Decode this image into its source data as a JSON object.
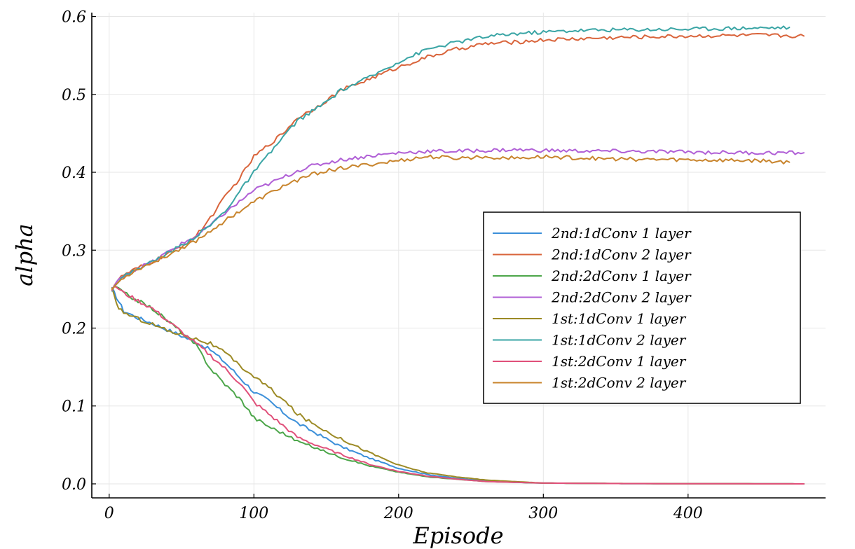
{
  "chart_data": {
    "type": "line",
    "title": "",
    "xlabel": "Episode",
    "ylabel": "alpha",
    "xlim": [
      -12,
      495
    ],
    "ylim": [
      -0.018,
      0.605
    ],
    "x_ticks": [
      0,
      100,
      200,
      300,
      400
    ],
    "x_tick_labels": [
      "0",
      "100",
      "200",
      "300",
      "400"
    ],
    "y_ticks": [
      0.0,
      0.1,
      0.2,
      0.3,
      0.4,
      0.5,
      0.6
    ],
    "y_tick_labels": [
      "0.0",
      "0.1",
      "0.2",
      "0.3",
      "0.4",
      "0.5",
      "0.6"
    ],
    "grid": true,
    "legend_position": "right",
    "series": [
      {
        "name": "2nd:1dConv 1 layer",
        "color": "#3b8fd9",
        "x": [
          2,
          5,
          10,
          20,
          30,
          40,
          50,
          60,
          70,
          80,
          90,
          100,
          110,
          120,
          130,
          140,
          150,
          160,
          180,
          200,
          220,
          240,
          260,
          280,
          300,
          350,
          400,
          450,
          480
        ],
        "y": [
          0.25,
          0.24,
          0.222,
          0.213,
          0.206,
          0.198,
          0.19,
          0.182,
          0.172,
          0.156,
          0.137,
          0.118,
          0.107,
          0.092,
          0.078,
          0.068,
          0.058,
          0.048,
          0.033,
          0.02,
          0.012,
          0.007,
          0.004,
          0.002,
          0.001,
          0.0004,
          0.0002,
          0.0001,
          0.0
        ]
      },
      {
        "name": "2nd:1dConv 2 layer",
        "color": "#d9643b",
        "x": [
          2,
          5,
          10,
          20,
          30,
          40,
          50,
          60,
          70,
          80,
          90,
          100,
          110,
          120,
          130,
          140,
          150,
          160,
          180,
          200,
          220,
          240,
          260,
          280,
          300,
          350,
          400,
          450,
          480
        ],
        "y": [
          0.25,
          0.26,
          0.268,
          0.277,
          0.285,
          0.295,
          0.305,
          0.318,
          0.342,
          0.368,
          0.392,
          0.42,
          0.435,
          0.45,
          0.47,
          0.48,
          0.492,
          0.505,
          0.52,
          0.535,
          0.548,
          0.558,
          0.565,
          0.567,
          0.57,
          0.573,
          0.575,
          0.576,
          0.575
        ]
      },
      {
        "name": "2nd:2dConv 1 layer",
        "color": "#4ca64a",
        "x": [
          2,
          5,
          10,
          20,
          30,
          40,
          50,
          60,
          65,
          70,
          80,
          90,
          95,
          100,
          110,
          120,
          130,
          140,
          150,
          160,
          180,
          200,
          220,
          240,
          260,
          280,
          300,
          350,
          400,
          450,
          480
        ],
        "y": [
          0.25,
          0.253,
          0.245,
          0.235,
          0.225,
          0.21,
          0.195,
          0.178,
          0.163,
          0.148,
          0.128,
          0.11,
          0.098,
          0.085,
          0.074,
          0.065,
          0.055,
          0.048,
          0.041,
          0.034,
          0.023,
          0.015,
          0.009,
          0.006,
          0.003,
          0.002,
          0.001,
          0.0004,
          0.0002,
          0.0001,
          0.0
        ]
      },
      {
        "name": "2nd:2dConv 2 layer",
        "color": "#b05fd6",
        "x": [
          2,
          5,
          10,
          20,
          30,
          40,
          50,
          60,
          70,
          80,
          90,
          100,
          110,
          120,
          130,
          140,
          150,
          160,
          180,
          200,
          220,
          240,
          260,
          280,
          300,
          350,
          400,
          450,
          480
        ],
        "y": [
          0.25,
          0.258,
          0.267,
          0.277,
          0.285,
          0.297,
          0.308,
          0.318,
          0.332,
          0.348,
          0.362,
          0.377,
          0.385,
          0.393,
          0.402,
          0.408,
          0.412,
          0.416,
          0.421,
          0.425,
          0.427,
          0.427,
          0.428,
          0.429,
          0.428,
          0.427,
          0.426,
          0.425,
          0.425
        ]
      },
      {
        "name": "1st:1dConv 1 layer",
        "color": "#9c8a25",
        "x": [
          2,
          5,
          10,
          20,
          30,
          40,
          50,
          60,
          70,
          80,
          90,
          100,
          110,
          120,
          130,
          140,
          150,
          160,
          180,
          200,
          220,
          240,
          260,
          280,
          300,
          350,
          400,
          450,
          480
        ],
        "y": [
          0.25,
          0.23,
          0.22,
          0.212,
          0.205,
          0.197,
          0.192,
          0.186,
          0.18,
          0.168,
          0.152,
          0.138,
          0.124,
          0.108,
          0.09,
          0.078,
          0.068,
          0.058,
          0.04,
          0.024,
          0.014,
          0.009,
          0.005,
          0.003,
          0.001,
          0.0005,
          0.0002,
          0.0001,
          0.0
        ]
      },
      {
        "name": "1st:1dConv 2 layer",
        "color": "#3aa5a5",
        "x": [
          2,
          5,
          10,
          20,
          30,
          40,
          50,
          60,
          70,
          80,
          90,
          100,
          110,
          120,
          130,
          140,
          150,
          160,
          180,
          200,
          220,
          240,
          260,
          280,
          300,
          320,
          350,
          400,
          430,
          470
        ],
        "y": [
          0.25,
          0.258,
          0.266,
          0.277,
          0.285,
          0.296,
          0.306,
          0.318,
          0.332,
          0.35,
          0.375,
          0.4,
          0.422,
          0.445,
          0.466,
          0.478,
          0.49,
          0.505,
          0.522,
          0.542,
          0.558,
          0.567,
          0.574,
          0.578,
          0.58,
          0.582,
          0.583,
          0.584,
          0.585,
          0.586
        ]
      },
      {
        "name": "1st:2dConv 1 layer",
        "color": "#e0507a",
        "x": [
          2,
          5,
          10,
          20,
          30,
          40,
          50,
          60,
          70,
          80,
          90,
          100,
          110,
          120,
          130,
          140,
          150,
          160,
          180,
          200,
          220,
          240,
          260,
          280,
          300,
          350,
          400,
          450,
          480
        ],
        "y": [
          0.25,
          0.253,
          0.245,
          0.235,
          0.225,
          0.21,
          0.195,
          0.18,
          0.165,
          0.148,
          0.13,
          0.105,
          0.09,
          0.075,
          0.06,
          0.052,
          0.045,
          0.038,
          0.025,
          0.016,
          0.01,
          0.006,
          0.003,
          0.002,
          0.001,
          0.0004,
          0.0002,
          0.0001,
          0.0
        ]
      },
      {
        "name": "1st:2dConv 2 layer",
        "color": "#c8842c",
        "x": [
          2,
          5,
          10,
          20,
          30,
          40,
          50,
          60,
          70,
          80,
          90,
          100,
          110,
          120,
          130,
          140,
          150,
          160,
          180,
          200,
          220,
          240,
          260,
          280,
          300,
          350,
          400,
          450,
          470
        ],
        "y": [
          0.25,
          0.256,
          0.265,
          0.276,
          0.284,
          0.293,
          0.303,
          0.312,
          0.325,
          0.338,
          0.35,
          0.362,
          0.372,
          0.382,
          0.39,
          0.397,
          0.402,
          0.405,
          0.41,
          0.415,
          0.42,
          0.418,
          0.42,
          0.418,
          0.42,
          0.417,
          0.416,
          0.415,
          0.413
        ]
      }
    ]
  }
}
